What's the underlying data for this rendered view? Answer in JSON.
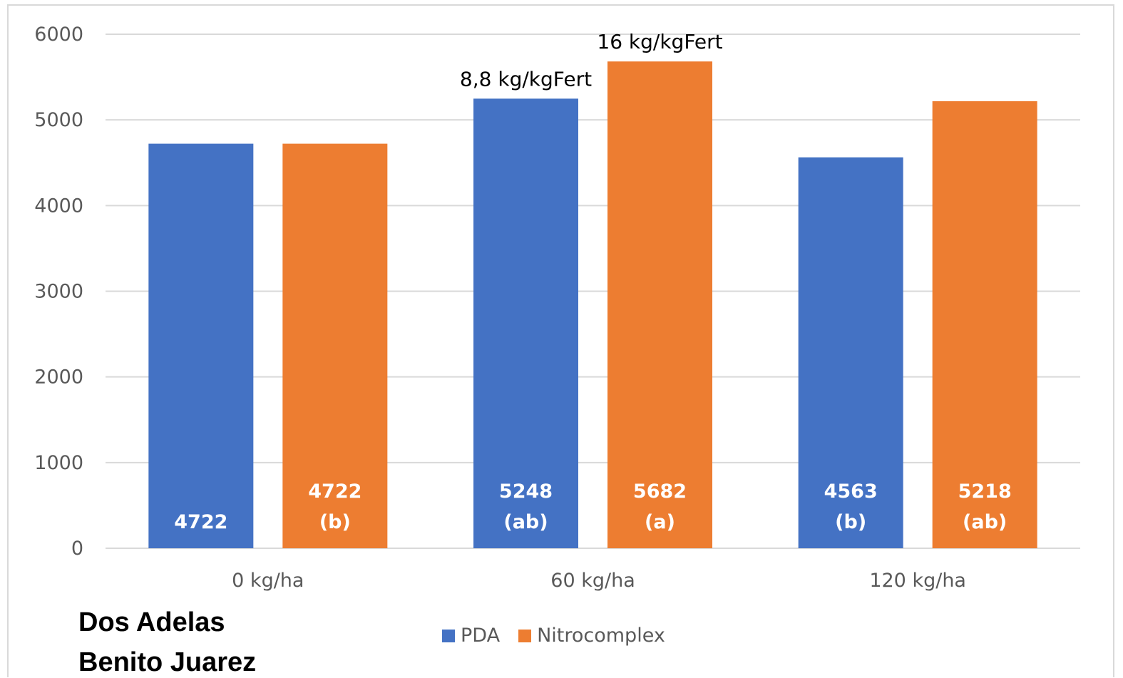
{
  "chart_data": {
    "type": "bar",
    "categories": [
      "0 kg/ha",
      "60 kg/ha",
      "120 kg/ha"
    ],
    "series": [
      {
        "name": "PDA",
        "color": "#4472c4",
        "values": [
          4722,
          5248,
          4563
        ],
        "labels": [
          [
            "4722"
          ],
          [
            "5248",
            "(ab)"
          ],
          [
            "4563",
            "(b)"
          ]
        ]
      },
      {
        "name": "Nitrocomplex",
        "color": "#ed7d31",
        "values": [
          4722,
          5682,
          5218
        ],
        "labels": [
          [
            "4722",
            "(b)"
          ],
          [
            "5682",
            "(a)"
          ],
          [
            "5218",
            "(ab)"
          ]
        ]
      }
    ],
    "ylim": [
      0,
      6000
    ],
    "yticks": [
      "0",
      "1000",
      "2000",
      "3000",
      "4000",
      "5000",
      "6000"
    ],
    "grid": true,
    "legend_position": "bottom",
    "annotations": [
      {
        "text": "8,8 kg/kgFert",
        "series": 0,
        "category": 1
      },
      {
        "text": "16 kg/kgFert",
        "series": 1,
        "category": 1
      }
    ]
  },
  "location": {
    "line1": "Dos Adelas",
    "line2": "Benito Juarez"
  }
}
